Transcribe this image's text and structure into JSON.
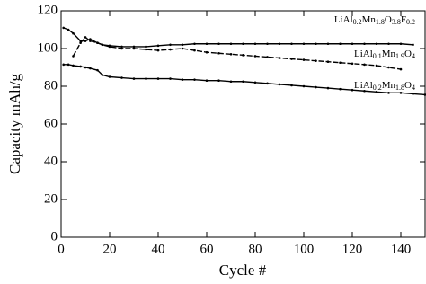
{
  "chart_data": {
    "type": "line",
    "x_label": "Cycle #",
    "y_label": "Capacity mAh/g",
    "x": [
      1,
      3,
      5,
      8,
      10,
      12,
      15,
      17,
      20,
      25,
      30,
      35,
      40,
      45,
      50,
      55,
      60,
      65,
      70,
      75,
      80,
      85,
      90,
      95,
      100,
      105,
      110,
      115,
      120,
      125,
      130,
      135,
      140,
      145,
      150
    ],
    "series": [
      {
        "name": "LiAl0.2Mn1.8O3.8F0.2",
        "color": "#000000",
        "values": [
          111,
          110,
          108,
          104,
          104,
          105,
          103,
          102,
          101.5,
          101,
          101,
          101,
          101.5,
          102,
          102,
          102.5,
          102.5,
          102.5,
          102.5,
          102.5,
          102.5,
          102.5,
          102.5,
          102.5,
          102.5,
          102.5,
          102.5,
          102.5,
          102.5,
          102.5,
          102.5,
          102.5,
          102.5,
          102,
          null
        ]
      },
      {
        "name": "LiAl0.1Mn1.9O4",
        "color": "#000000",
        "values": [
          null,
          null,
          96,
          103,
          106,
          104,
          103,
          102,
          101,
          100,
          100,
          99.5,
          99,
          99.5,
          100,
          99,
          98,
          97.5,
          97,
          96.5,
          96,
          95.5,
          95,
          94.5,
          94,
          93.5,
          93,
          92.5,
          92,
          91.5,
          91,
          90,
          89,
          null,
          null
        ]
      },
      {
        "name": "LiAl0.2Mn1.8O4",
        "color": "#000000",
        "values": [
          91.5,
          91.5,
          91,
          90.5,
          90,
          89.5,
          88.5,
          86,
          85,
          84.5,
          84,
          84,
          84,
          84,
          83.5,
          83.5,
          83,
          83,
          82.5,
          82.5,
          82,
          81.5,
          81,
          80.5,
          80,
          79.5,
          79,
          78.5,
          78,
          77.5,
          77,
          76.5,
          76.5,
          76,
          75.5
        ]
      }
    ],
    "xlim": [
      0,
      150
    ],
    "xticks": [
      0,
      20,
      40,
      60,
      80,
      100,
      120,
      140
    ],
    "ylim": [
      0,
      120
    ],
    "yticks": [
      0,
      20,
      40,
      60,
      80,
      100,
      120
    ]
  }
}
